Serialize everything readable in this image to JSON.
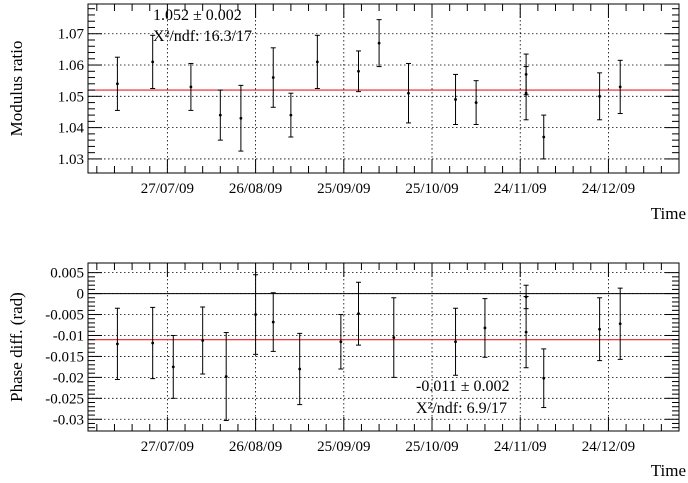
{
  "colors": {
    "fit_line": "#e8202a",
    "points": "#000000",
    "zero_line": "#000000"
  },
  "chart_data": [
    {
      "type": "scatter",
      "ylabel": "Modulus ratio",
      "xlabel": "Time",
      "fit_text": "1.052 ± 0.002",
      "chi2_text": "Χ²/ndf: 16.3/17",
      "x_ticks": [
        "27/07/09",
        "26/08/09",
        "25/09/09",
        "25/10/09",
        "24/11/09",
        "24/12/09"
      ],
      "y_ticks": [
        "1.03",
        "1.04",
        "1.05",
        "1.06",
        "1.07"
      ],
      "x_range": [
        "30/06/09",
        "17/01/10"
      ],
      "ylim": [
        1.0255,
        1.0795
      ],
      "fit_value": 1.052,
      "grid": true,
      "series": [
        {
          "x": [
            "10/07/09",
            "22/07/09",
            "04/08/09",
            "14/08/09",
            "21/08/09",
            "01/09/09",
            "07/09/09",
            "16/09/09",
            "30/09/09",
            "07/10/09",
            "17/10/09",
            "02/11/09",
            "09/11/09",
            "26/11/09",
            "26/11/09",
            "02/12/09",
            "21/12/09",
            "28/12/09"
          ],
          "y": [
            1.054,
            1.061,
            1.053,
            1.044,
            1.043,
            1.056,
            1.044,
            1.061,
            1.058,
            1.067,
            1.051,
            1.049,
            1.048,
            1.057,
            1.051,
            1.037,
            1.05,
            1.053
          ],
          "err": [
            0.0085,
            0.0085,
            0.0075,
            0.008,
            0.0105,
            0.0095,
            0.007,
            0.0085,
            0.0065,
            0.0075,
            0.0095,
            0.008,
            0.007,
            0.0065,
            0.0085,
            0.007,
            0.0075,
            0.0085
          ]
        }
      ]
    },
    {
      "type": "scatter",
      "ylabel": "Phase diff. (rad)",
      "xlabel": "Time",
      "fit_text": "-0.011 ± 0.002",
      "chi2_text": "Χ²/ndf: 6.9/17",
      "x_ticks": [
        "27/07/09",
        "26/08/09",
        "25/09/09",
        "25/10/09",
        "24/11/09",
        "24/12/09"
      ],
      "y_ticks": [
        "0.005",
        "0",
        "-0.005",
        "-0.01",
        "-0.015",
        "-0.02",
        "-0.025",
        "-0.03"
      ],
      "x_range": [
        "30/06/09",
        "17/01/10"
      ],
      "ylim": [
        -0.0328,
        0.0073
      ],
      "fit_value": -0.011,
      "grid": true,
      "series": [
        {
          "x": [
            "10/07/09",
            "22/07/09",
            "29/07/09",
            "08/08/09",
            "16/08/09",
            "26/08/09",
            "01/09/09",
            "10/09/09",
            "24/09/09",
            "30/09/09",
            "12/10/09",
            "02/11/09",
            "12/11/09",
            "26/11/09",
            "26/11/09",
            "02/12/09",
            "21/12/09",
            "28/12/09"
          ],
          "y": [
            -0.012,
            -0.0118,
            -0.0175,
            -0.0112,
            -0.0198,
            -0.005,
            -0.0068,
            -0.018,
            -0.0115,
            -0.0048,
            -0.0105,
            -0.0115,
            -0.0082,
            -0.0008,
            -0.0092,
            -0.0202,
            -0.0085,
            -0.0072
          ],
          "err": [
            0.0085,
            0.0085,
            0.0075,
            0.008,
            0.0105,
            0.0095,
            0.007,
            0.0085,
            0.0065,
            0.0075,
            0.0095,
            0.008,
            0.007,
            0.0028,
            0.0085,
            0.007,
            0.0075,
            0.0085
          ]
        }
      ]
    }
  ]
}
